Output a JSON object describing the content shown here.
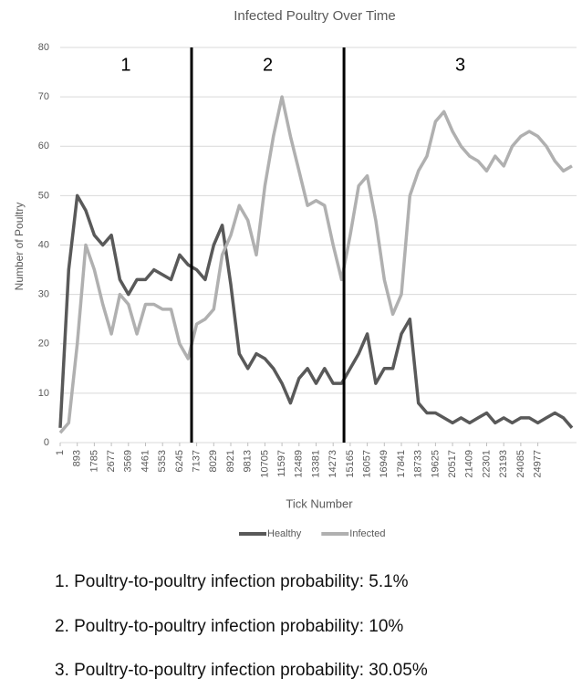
{
  "chart_data": {
    "type": "line",
    "title": "Infected Poultry Over Time",
    "x_label": "Tick Number",
    "y_label": "Number of Poultry",
    "x": [
      1,
      447,
      893,
      1339,
      1785,
      2231,
      2677,
      3123,
      3569,
      4015,
      4461,
      4907,
      5353,
      5799,
      6245,
      6691,
      7137,
      7583,
      8029,
      8475,
      8921,
      9367,
      9813,
      10259,
      10705,
      11151,
      11597,
      12043,
      12489,
      12935,
      13381,
      13827,
      14273,
      14719,
      15165,
      15611,
      16057,
      16503,
      16949,
      17395,
      17841,
      18287,
      18733,
      19179,
      19625,
      20071,
      20517,
      20963,
      21409,
      21855,
      22301,
      22747,
      23193,
      23639,
      24085,
      24531,
      24977,
      25423,
      25869,
      26315,
      26761
    ],
    "series": [
      {
        "name": "Healthy",
        "color": "#595959",
        "values": [
          3,
          35,
          50,
          47,
          42,
          40,
          42,
          33,
          30,
          33,
          33,
          35,
          34,
          33,
          38,
          36,
          35,
          33,
          40,
          44,
          32,
          18,
          15,
          18,
          17,
          15,
          12,
          8,
          13,
          15,
          12,
          15,
          12,
          12,
          15,
          18,
          22,
          12,
          15,
          15,
          22,
          25,
          8,
          6,
          6,
          5,
          4,
          5,
          4,
          5,
          6,
          4,
          5,
          4,
          5,
          5,
          4,
          5,
          6,
          5,
          3
        ]
      },
      {
        "name": "Infected",
        "color": "#b0b0b0",
        "values": [
          2,
          4,
          20,
          40,
          35,
          28,
          22,
          30,
          28,
          22,
          28,
          28,
          27,
          27,
          20,
          17,
          24,
          25,
          27,
          38,
          42,
          48,
          45,
          38,
          52,
          62,
          70,
          62,
          55,
          48,
          49,
          48,
          40,
          33,
          42,
          52,
          54,
          45,
          33,
          26,
          30,
          50,
          55,
          58,
          65,
          67,
          63,
          60,
          58,
          57,
          55,
          58,
          56,
          60,
          62,
          63,
          62,
          60,
          57,
          55,
          56
        ]
      }
    ],
    "xlim": [
      1,
      27000
    ],
    "xticks": [
      1,
      893,
      1785,
      2677,
      3569,
      4461,
      5353,
      6245,
      7137,
      8029,
      8921,
      9813,
      10705,
      11597,
      12489,
      13381,
      14273,
      15165,
      16057,
      16949,
      17841,
      18733,
      19625,
      20517,
      21409,
      22301,
      23193,
      24085,
      24977
    ],
    "ylim": [
      0,
      80
    ],
    "yticks": [
      0,
      10,
      20,
      30,
      40,
      50,
      60,
      70,
      80
    ],
    "grid": true,
    "dividers": [
      6870,
      14840
    ],
    "region_labels": [
      "1",
      "2",
      "3"
    ],
    "legend": "bottom"
  },
  "captions": [
    "1. Poultry-to-poultry infection probability: 5.1%",
    "2. Poultry-to-poultry infection probability: 10%",
    "3. Poultry-to-poultry infection probability: 30.05%"
  ]
}
